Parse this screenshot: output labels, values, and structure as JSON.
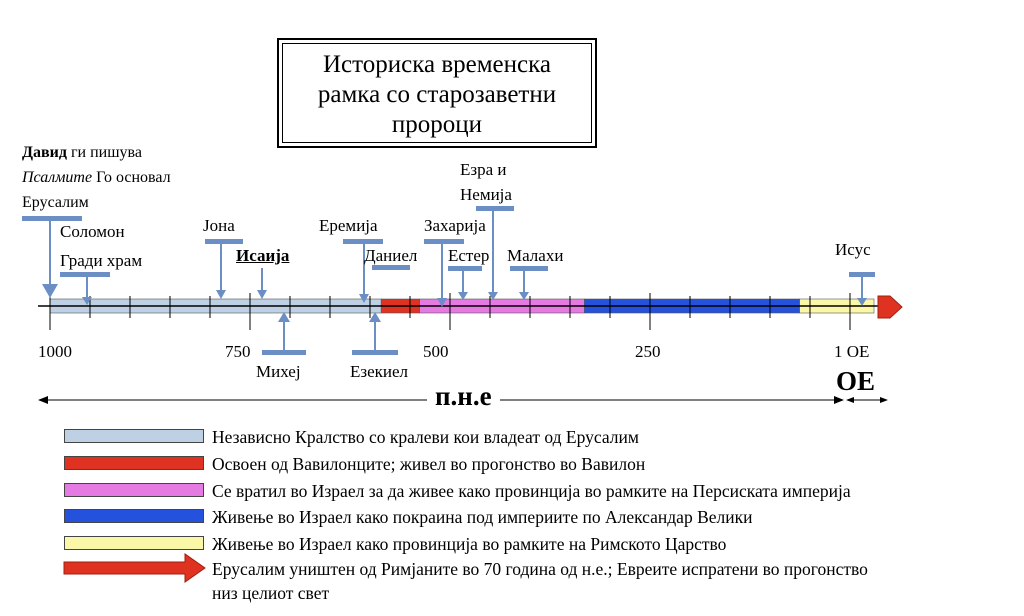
{
  "title": {
    "line1": "Историска временска",
    "line2": "рамка со старозаветни",
    "line3": "пророци"
  },
  "david_note": {
    "name": "Давид",
    "rest1": " ги пишува",
    "psalms": "Псалмите",
    "rest2": " Го основал",
    "line3": "Ерусалим"
  },
  "labels": {
    "solomon_1": "Соломон",
    "solomon_2": "Гради храм",
    "jona": "Јона",
    "isaija": "Исаија",
    "eremija": "Еремија",
    "daniel": "Даниел",
    "zaharija": "Захарија",
    "ester": "Естер",
    "ezra_1": "Езра и",
    "ezra_2": "Немија",
    "malahi": "Малахи",
    "isus": "Исус",
    "mihej": "Михеј",
    "ezekiel": "Езекиел"
  },
  "axis": {
    "ticks": [
      "1000",
      "750",
      "500",
      "250",
      "1 ОЕ"
    ],
    "bce": "п.н.е",
    "ce": "ОЕ"
  },
  "periods": [
    {
      "from": 1030,
      "to": 586,
      "color": "#bed0e4"
    },
    {
      "from": 586,
      "to": 538,
      "color": "#e03221"
    },
    {
      "from": 538,
      "to": 332,
      "color": "#e67ae3"
    },
    {
      "from": 332,
      "to": 63,
      "color": "#2552dc"
    },
    {
      "from": 63,
      "to": -30,
      "color": "#fbf7a9"
    }
  ],
  "legend": [
    {
      "color": "#bed0e4",
      "text": "Независно Кралство со кралеви кои владеат од Ерусалим"
    },
    {
      "color": "#e03221",
      "text": "Освоен од Вавилонците; живел во прогонство во Вавилон"
    },
    {
      "color": "#e67ae3",
      "text": "Се вратил во Израел за да живее како провинција во рамките на Персиската империја"
    },
    {
      "color": "#2552dc",
      "text": "Живење во Израел како покраина под империите по Александар Велики"
    },
    {
      "color": "#fbf7a9",
      "text": "Живење во Израел како провинција во рамките на Римското Царство"
    },
    {
      "color": "#e03221",
      "text": "Ерусалим уништен од Римјаните во 70 година од н.е.; Евреите испратени во прогонство",
      "text2": "низ целиот свет",
      "arrow": true
    }
  ],
  "colors": {
    "pointer": "#6b8fc4",
    "arrow": "#e03221"
  }
}
